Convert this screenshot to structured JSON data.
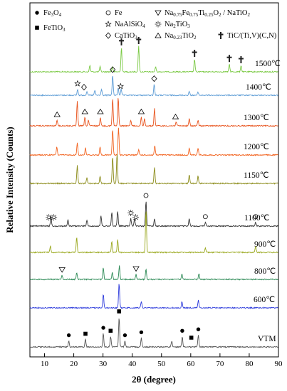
{
  "chart_data": {
    "type": "line",
    "xlabel": "2θ (degree)",
    "ylabel": "Relative Intensity (Counts)",
    "xlim": [
      5,
      90
    ],
    "xticks": [
      10,
      20,
      30,
      40,
      50,
      60,
      70,
      80,
      90
    ],
    "legend": [
      {
        "symbol": "filled-circle",
        "label": "Fe3O4",
        "parts": [
          "Fe",
          "3",
          "O",
          "4"
        ]
      },
      {
        "symbol": "open-circle",
        "label": "Fe",
        "parts": [
          "Fe"
        ]
      },
      {
        "symbol": "down-triangle",
        "label": "Na0.75Fe0.75Ti0.25O2 / NaTiO2",
        "parts": [
          "Na",
          "0.75",
          "Fe",
          "0.75",
          "Ti",
          "0.25",
          "O",
          "2",
          " / NaTiO",
          "2"
        ]
      },
      {
        "symbol": "filled-square",
        "label": "FeTiO3",
        "parts": [
          "FeTiO",
          "3"
        ]
      },
      {
        "symbol": "star",
        "label": "NaAlSiO4",
        "parts": [
          "NaAlSiO",
          "4"
        ]
      },
      {
        "symbol": "sun",
        "label": "Na2TiO3",
        "parts": [
          "Na",
          "2",
          "TiO",
          "3"
        ]
      },
      {
        "symbol": "up-triangle",
        "label": "Na0.23TiO2",
        "parts": [
          "Na",
          "0.23",
          "TiO",
          "2"
        ]
      },
      {
        "symbol": "dagger",
        "label": "TiC/(Ti,V)(C,N)",
        "parts": [
          "TiC/(Ti,V)(C,N)"
        ]
      },
      {
        "symbol": "diamond",
        "label": "CaTiO3",
        "parts": [
          "CaTiO",
          "3"
        ]
      }
    ],
    "series": [
      {
        "name": "1500℃",
        "color": "#7ac943",
        "peaks": [
          [
            25.5,
            0.25
          ],
          [
            29,
            0.2
          ],
          [
            33.2,
            0.2
          ],
          [
            36.3,
            0.95
          ],
          [
            42.2,
            1.0
          ],
          [
            48,
            0.2
          ],
          [
            61.3,
            0.5
          ],
          [
            73.2,
            0.3
          ],
          [
            77.2,
            0.25
          ]
        ],
        "markers": [
          {
            "symbol": "dagger",
            "x": 36.3
          },
          {
            "symbol": "dagger",
            "x": 42.2
          },
          {
            "symbol": "dagger",
            "x": 61.3
          },
          {
            "symbol": "dagger",
            "x": 73.2
          },
          {
            "symbol": "dagger",
            "x": 77.2
          }
        ]
      },
      {
        "name": "1400℃",
        "color": "#5b9bd5",
        "peaks": [
          [
            21.3,
            0.3
          ],
          [
            24.5,
            0.2
          ],
          [
            27.2,
            0.25
          ],
          [
            29.5,
            0.3
          ],
          [
            33.3,
            1.0
          ],
          [
            35.2,
            0.35
          ],
          [
            36.2,
            0.3
          ],
          [
            47.5,
            0.55
          ],
          [
            59.5,
            0.2
          ],
          [
            62.5,
            0.15
          ]
        ],
        "markers": [
          {
            "symbol": "star",
            "x": 21.3
          },
          {
            "symbol": "diamond",
            "x": 23.5
          },
          {
            "symbol": "diamond",
            "x": 33.3
          },
          {
            "symbol": "star",
            "x": 36
          },
          {
            "symbol": "diamond",
            "x": 47.5
          }
        ]
      },
      {
        "name": "1300℃",
        "color": "#e8541e",
        "peaks": [
          [
            14.3,
            0.2
          ],
          [
            21.2,
            0.85
          ],
          [
            23.8,
            0.3
          ],
          [
            25,
            0.2
          ],
          [
            29.1,
            0.3
          ],
          [
            33.3,
            0.95
          ],
          [
            35.2,
            1.0
          ],
          [
            39.5,
            0.2
          ],
          [
            43.1,
            0.3
          ],
          [
            44.2,
            0.25
          ],
          [
            47.6,
            0.6
          ],
          [
            55,
            0.15
          ],
          [
            59.5,
            0.25
          ],
          [
            62.5,
            0.2
          ]
        ],
        "markers": [
          {
            "symbol": "up-triangle",
            "x": 14.3
          },
          {
            "symbol": "up-triangle",
            "x": 23.8
          },
          {
            "symbol": "up-triangle",
            "x": 29.1
          },
          {
            "symbol": "up-triangle",
            "x": 43.1
          },
          {
            "symbol": "up-triangle",
            "x": 54.8
          }
        ]
      },
      {
        "name": "1200℃",
        "color": "#f26522",
        "peaks": [
          [
            14.2,
            0.3
          ],
          [
            21.2,
            0.45
          ],
          [
            24,
            0.25
          ],
          [
            29,
            0.3
          ],
          [
            33.3,
            0.95
          ],
          [
            35.3,
            1.0
          ],
          [
            42.2,
            0.2
          ],
          [
            47.7,
            0.35
          ],
          [
            59.5,
            0.25
          ],
          [
            62.5,
            0.25
          ]
        ],
        "markers": []
      },
      {
        "name": "1150℃",
        "color": "#8c8c1a",
        "peaks": [
          [
            21.2,
            0.6
          ],
          [
            24.5,
            0.2
          ],
          [
            29,
            0.25
          ],
          [
            33.3,
            0.9
          ],
          [
            34.8,
            1.0
          ],
          [
            47.6,
            0.55
          ],
          [
            59.5,
            0.3
          ],
          [
            62.5,
            0.25
          ]
        ],
        "markers": []
      },
      {
        "name": "1100℃",
        "color": "#333333",
        "peaks": [
          [
            12.2,
            0.4
          ],
          [
            18,
            0.25
          ],
          [
            24.5,
            0.25
          ],
          [
            29.3,
            0.4
          ],
          [
            33,
            0.55
          ],
          [
            35,
            0.6
          ],
          [
            39.5,
            0.3
          ],
          [
            40.8,
            0.3
          ],
          [
            44.7,
            1.0
          ],
          [
            47.6,
            0.3
          ],
          [
            59.5,
            0.3
          ],
          [
            65,
            0.15
          ],
          [
            82.2,
            0.15
          ]
        ],
        "markers": [
          {
            "symbol": "sun",
            "x": 11.5
          },
          {
            "symbol": "sun",
            "x": 13.2
          },
          {
            "symbol": "sun",
            "x": 39.5
          },
          {
            "symbol": "sun",
            "x": 41.2
          },
          {
            "symbol": "open-circle",
            "x": 44.7
          },
          {
            "symbol": "open-circle",
            "x": 65
          },
          {
            "symbol": "open-circle",
            "x": 82.2
          }
        ]
      },
      {
        "name": "900℃",
        "color": "#9aa81e",
        "peaks": [
          [
            12,
            0.15
          ],
          [
            21,
            0.35
          ],
          [
            33,
            0.25
          ],
          [
            35,
            0.3
          ],
          [
            44.7,
            1.0
          ],
          [
            65,
            0.1
          ],
          [
            82.2,
            0.15
          ]
        ],
        "markers": []
      },
      {
        "name": "800℃",
        "color": "#2e8b57",
        "peaks": [
          [
            16,
            0.2
          ],
          [
            21,
            0.35
          ],
          [
            30.1,
            0.6
          ],
          [
            33.2,
            0.35
          ],
          [
            35.6,
            0.7
          ],
          [
            41.3,
            0.25
          ],
          [
            44.7,
            0.5
          ],
          [
            57,
            0.25
          ],
          [
            62.8,
            0.3
          ]
        ],
        "markers": [
          {
            "symbol": "down-triangle",
            "x": 16
          },
          {
            "symbol": "down-triangle",
            "x": 41.3
          }
        ]
      },
      {
        "name": "600℃",
        "color": "#2e3cdc",
        "peaks": [
          [
            30.1,
            0.55
          ],
          [
            35.5,
            1.0
          ],
          [
            43.1,
            0.25
          ],
          [
            57,
            0.25
          ],
          [
            62.6,
            0.3
          ]
        ],
        "markers": []
      },
      {
        "name": "VTM",
        "color": "#555555",
        "peaks": [
          [
            18.3,
            0.2
          ],
          [
            24,
            0.25
          ],
          [
            30.1,
            0.45
          ],
          [
            32.6,
            0.35
          ],
          [
            35.5,
            1.0
          ],
          [
            37.5,
            0.2
          ],
          [
            43.1,
            0.3
          ],
          [
            53.5,
            0.2
          ],
          [
            57.1,
            0.35
          ],
          [
            62.6,
            0.4
          ]
        ],
        "markers": [
          {
            "symbol": "filled-circle",
            "x": 18.3
          },
          {
            "symbol": "filled-square",
            "x": 24
          },
          {
            "symbol": "filled-circle",
            "x": 30.1
          },
          {
            "symbol": "filled-square",
            "x": 32.6
          },
          {
            "symbol": "filled-circle",
            "x": 35.5
          },
          {
            "symbol": "filled-square",
            "x": 35.5
          },
          {
            "symbol": "filled-circle",
            "x": 37.5
          },
          {
            "symbol": "filled-circle",
            "x": 43.1
          },
          {
            "symbol": "filled-circle",
            "x": 57.1
          },
          {
            "symbol": "filled-square",
            "x": 60.2
          },
          {
            "symbol": "filled-circle",
            "x": 62.6
          }
        ]
      }
    ]
  }
}
